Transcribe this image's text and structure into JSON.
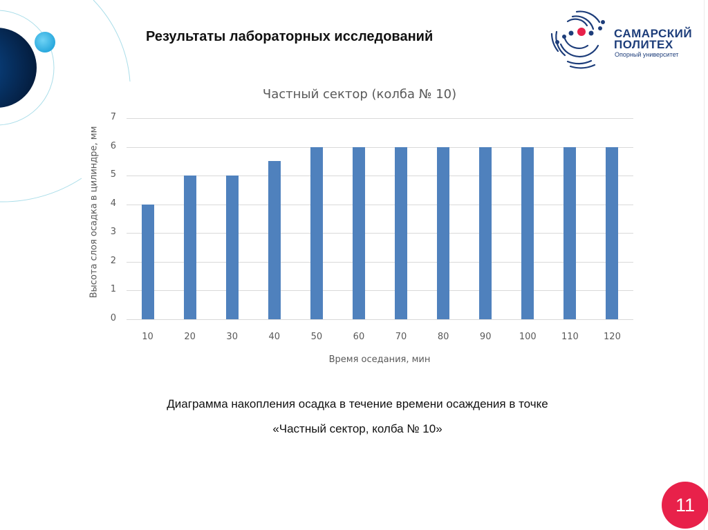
{
  "slide": {
    "title": "Результаты лабораторных исследований",
    "page_number": "11",
    "caption_line1": "Диаграмма накопления осадка в течение времени осаждения в точке",
    "caption_line2": "«Частный сектор, колба № 10»"
  },
  "logo": {
    "line1": "САМАРСКИЙ",
    "line2": "ПОЛИТЕХ",
    "line3": "Опорный университет"
  },
  "colors": {
    "bar": "#4f81bd",
    "badge": "#e8214a",
    "logo_blue": "#1d3d7a",
    "logo_red": "#e8214a"
  },
  "chart_data": {
    "type": "bar",
    "title": "Частный сектор (колба № 10)",
    "xlabel": "Время оседания, мин",
    "ylabel": "Высота слоя осадка в цилиндре, мм",
    "categories": [
      "10",
      "20",
      "30",
      "40",
      "50",
      "60",
      "70",
      "80",
      "90",
      "100",
      "110",
      "120"
    ],
    "values": [
      4,
      5,
      5,
      5.5,
      6,
      6,
      6,
      6,
      6,
      6,
      6,
      6
    ],
    "yticks": [
      "0",
      "1",
      "2",
      "3",
      "4",
      "5",
      "6",
      "7"
    ],
    "ylim": [
      0,
      7
    ],
    "grid": true,
    "legend": "none"
  }
}
